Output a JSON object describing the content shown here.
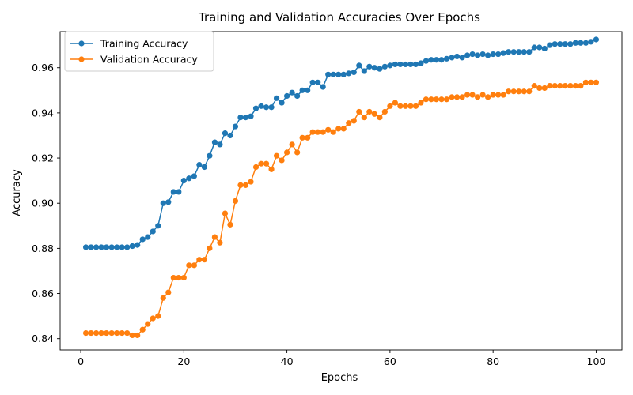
{
  "chart_data": {
    "type": "line",
    "title": "Training and Validation Accuracies Over Epochs",
    "xlabel": "Epochs",
    "ylabel": "Accuracy",
    "xlim": [
      -4,
      105
    ],
    "ylim": [
      0.835,
      0.976
    ],
    "xticks": [
      0,
      20,
      40,
      60,
      80,
      100
    ],
    "yticks": [
      0.84,
      0.86,
      0.88,
      0.9,
      0.92,
      0.94,
      0.96
    ],
    "ytick_labels": [
      "0.84",
      "0.86",
      "0.88",
      "0.90",
      "0.92",
      "0.94",
      "0.96"
    ],
    "grid": false,
    "legend_position": "upper left",
    "x": [
      1,
      2,
      3,
      4,
      5,
      6,
      7,
      8,
      9,
      10,
      11,
      12,
      13,
      14,
      15,
      16,
      17,
      18,
      19,
      20,
      21,
      22,
      23,
      24,
      25,
      26,
      27,
      28,
      29,
      30,
      31,
      32,
      33,
      34,
      35,
      36,
      37,
      38,
      39,
      40,
      41,
      42,
      43,
      44,
      45,
      46,
      47,
      48,
      49,
      50,
      51,
      52,
      53,
      54,
      55,
      56,
      57,
      58,
      59,
      60,
      61,
      62,
      63,
      64,
      65,
      66,
      67,
      68,
      69,
      70,
      71,
      72,
      73,
      74,
      75,
      76,
      77,
      78,
      79,
      80,
      81,
      82,
      83,
      84,
      85,
      86,
      87,
      88,
      89,
      90,
      91,
      92,
      93,
      94,
      95,
      96,
      97,
      98,
      99,
      100
    ],
    "series": [
      {
        "name": "Training Accuracy",
        "color": "#1f77b4",
        "values": [
          0.8805,
          0.8805,
          0.8805,
          0.8805,
          0.8805,
          0.8805,
          0.8805,
          0.8805,
          0.8805,
          0.881,
          0.8815,
          0.884,
          0.885,
          0.8875,
          0.89,
          0.9,
          0.9005,
          0.905,
          0.905,
          0.91,
          0.911,
          0.912,
          0.917,
          0.916,
          0.921,
          0.927,
          0.926,
          0.931,
          0.93,
          0.934,
          0.938,
          0.938,
          0.9385,
          0.942,
          0.943,
          0.9425,
          0.9425,
          0.9465,
          0.9445,
          0.9475,
          0.949,
          0.9475,
          0.95,
          0.95,
          0.9535,
          0.9535,
          0.9515,
          0.957,
          0.957,
          0.957,
          0.957,
          0.9575,
          0.958,
          0.961,
          0.9585,
          0.9605,
          0.96,
          0.9595,
          0.9605,
          0.961,
          0.9615,
          0.9615,
          0.9615,
          0.9615,
          0.9615,
          0.962,
          0.963,
          0.9635,
          0.9635,
          0.9635,
          0.964,
          0.9645,
          0.965,
          0.9645,
          0.9655,
          0.966,
          0.9655,
          0.966,
          0.9655,
          0.966,
          0.966,
          0.9665,
          0.967,
          0.967,
          0.967,
          0.967,
          0.967,
          0.969,
          0.969,
          0.9685,
          0.97,
          0.9705,
          0.9705,
          0.9705,
          0.9705,
          0.971,
          0.971,
          0.971,
          0.9715,
          0.9725
        ]
      },
      {
        "name": "Validation Accuracy",
        "color": "#ff7f0e",
        "values": [
          0.8425,
          0.8425,
          0.8425,
          0.8425,
          0.8425,
          0.8425,
          0.8425,
          0.8425,
          0.8425,
          0.8415,
          0.8415,
          0.844,
          0.8465,
          0.849,
          0.85,
          0.858,
          0.8605,
          0.867,
          0.867,
          0.867,
          0.8725,
          0.8725,
          0.875,
          0.875,
          0.88,
          0.885,
          0.8825,
          0.8955,
          0.8905,
          0.901,
          0.908,
          0.908,
          0.9095,
          0.916,
          0.9175,
          0.9175,
          0.915,
          0.921,
          0.919,
          0.9225,
          0.926,
          0.9225,
          0.929,
          0.929,
          0.9315,
          0.9315,
          0.9315,
          0.9325,
          0.9315,
          0.933,
          0.933,
          0.9355,
          0.9365,
          0.9405,
          0.938,
          0.9405,
          0.9395,
          0.938,
          0.9405,
          0.943,
          0.9445,
          0.943,
          0.943,
          0.943,
          0.943,
          0.9445,
          0.946,
          0.946,
          0.946,
          0.946,
          0.946,
          0.947,
          0.947,
          0.947,
          0.948,
          0.948,
          0.947,
          0.948,
          0.947,
          0.948,
          0.948,
          0.948,
          0.9495,
          0.9495,
          0.9495,
          0.9495,
          0.9495,
          0.952,
          0.951,
          0.951,
          0.952,
          0.952,
          0.952,
          0.952,
          0.952,
          0.952,
          0.952,
          0.9535,
          0.9535,
          0.9535
        ]
      }
    ]
  }
}
